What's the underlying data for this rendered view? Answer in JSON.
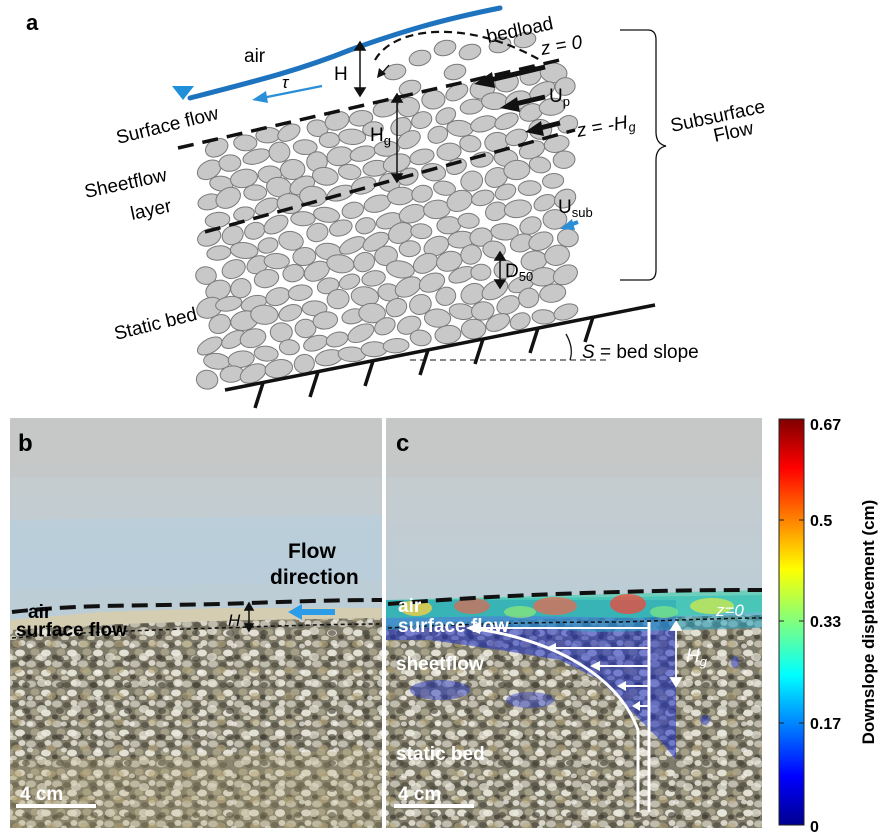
{
  "panel_a": {
    "letter": "a",
    "air": "air",
    "bedload": "bedload",
    "z0": "z = 0",
    "zHg": "z = -H",
    "zHg_sub": "g",
    "H": "H",
    "Hg": "H",
    "Hg_sub": "g",
    "tau": "τ",
    "Up": "U",
    "Up_sub": "p",
    "Usub": "U",
    "Usub_sub": "sub",
    "D50": "D",
    "D50_sub": "50",
    "surface_flow": "Surface flow",
    "sheetflow_1": "Sheetflow",
    "sheetflow_2": "layer",
    "static_bed": "Static bed",
    "subsurface_1": "Subsurface",
    "subsurface_2": "Flow",
    "S": "S",
    "bed_slope": " = bed slope"
  },
  "panel_b": {
    "letter": "b",
    "flow_1": "Flow",
    "flow_2": "direction",
    "air": "air",
    "surface_flow": "surface flow",
    "H": "H",
    "scale": "4 cm"
  },
  "panel_c": {
    "letter": "c",
    "air": "air",
    "surface_flow": "surface flow",
    "z0": "z=0",
    "sheetflow": "sheetflow",
    "Hg": "H",
    "Hg_sub": "g",
    "static_bed": "static bed",
    "scale": "4 cm"
  },
  "colorbar": {
    "title": "Downslope displacement (cm)",
    "ticks": [
      "0.67",
      "0.5",
      "0.33",
      "0.17",
      "0"
    ]
  },
  "colors": {
    "water_line": "#1e73be",
    "arrow_blue": "#2b8fd8",
    "grain_fill": "#c8c8c8",
    "grain_stroke": "#7a7a7a"
  }
}
